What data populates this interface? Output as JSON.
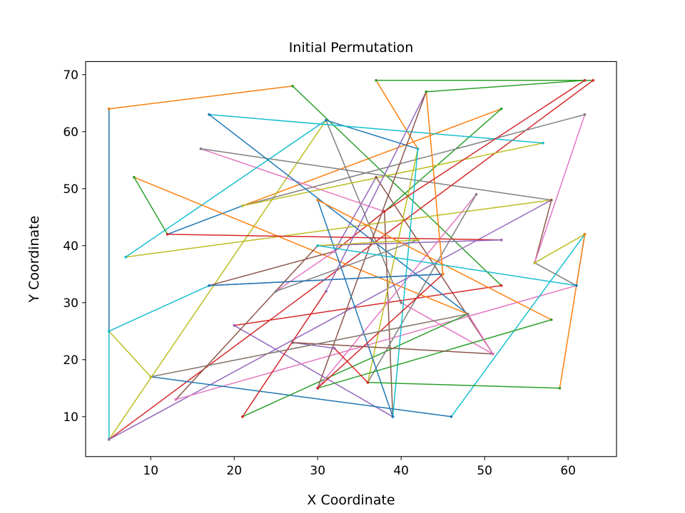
{
  "chart_data": {
    "type": "line",
    "title": "Initial Permutation",
    "xlabel": "X Coordinate",
    "ylabel": "Y Coordinate",
    "xlim": [
      2.2,
      65.8
    ],
    "ylim": [
      3.0,
      72.3
    ],
    "xticks": [
      10,
      20,
      30,
      40,
      50,
      60
    ],
    "yticks": [
      10,
      20,
      30,
      40,
      50,
      60,
      70
    ],
    "grid": false,
    "legend": "none",
    "color_cycle": [
      "#1f77b4",
      "#ff7f0e",
      "#2ca02c",
      "#d62728",
      "#9467bd",
      "#8c564b",
      "#e377c2",
      "#7f7f7f",
      "#bcbd22",
      "#17becf"
    ],
    "route": [
      [
        12,
        42
      ],
      [
        21,
        47
      ],
      [
        52,
        64
      ],
      [
        38,
        46
      ],
      [
        32,
        39
      ],
      [
        37,
        52
      ],
      [
        51,
        21
      ],
      [
        40,
        30
      ],
      [
        31,
        62
      ],
      [
        5,
        6
      ],
      [
        5,
        25
      ],
      [
        5,
        64
      ],
      [
        27,
        68
      ],
      [
        52,
        33
      ],
      [
        20,
        26
      ],
      [
        39,
        10
      ],
      [
        38,
        46
      ],
      [
        16,
        57
      ],
      [
        58,
        48
      ],
      [
        7,
        38
      ],
      [
        31,
        62
      ],
      [
        42,
        57
      ],
      [
        37,
        69
      ],
      [
        63,
        69
      ],
      [
        5,
        6
      ],
      [
        58,
        48
      ],
      [
        56,
        37
      ],
      [
        62,
        63
      ],
      [
        21,
        47
      ],
      [
        57,
        58
      ],
      [
        17,
        63
      ],
      [
        48,
        28
      ],
      [
        8,
        52
      ],
      [
        12,
        42
      ],
      [
        52,
        41
      ],
      [
        30,
        40
      ],
      [
        13,
        13
      ],
      [
        61,
        33
      ],
      [
        56,
        37
      ],
      [
        62,
        42
      ],
      [
        46,
        10
      ],
      [
        10,
        17
      ],
      [
        48,
        28
      ],
      [
        21,
        10
      ],
      [
        31,
        32
      ],
      [
        43,
        67
      ],
      [
        30,
        15
      ],
      [
        49,
        49
      ],
      [
        36,
        16
      ],
      [
        42,
        57
      ],
      [
        39,
        10
      ],
      [
        30,
        48
      ],
      [
        58,
        27
      ],
      [
        30,
        15
      ],
      [
        45,
        35
      ],
      [
        17,
        33
      ],
      [
        32,
        39
      ],
      [
        25,
        32
      ],
      [
        42,
        41
      ],
      [
        30,
        40
      ],
      [
        61,
        33
      ],
      [
        62,
        42
      ],
      [
        59,
        15
      ],
      [
        36,
        16
      ],
      [
        32,
        22
      ],
      [
        27,
        23
      ],
      [
        51,
        21
      ],
      [
        48,
        28
      ],
      [
        10,
        17
      ],
      [
        5,
        25
      ],
      [
        17,
        33
      ],
      [
        45,
        35
      ],
      [
        43,
        67
      ],
      [
        62,
        69
      ],
      [
        38,
        46
      ]
    ]
  }
}
